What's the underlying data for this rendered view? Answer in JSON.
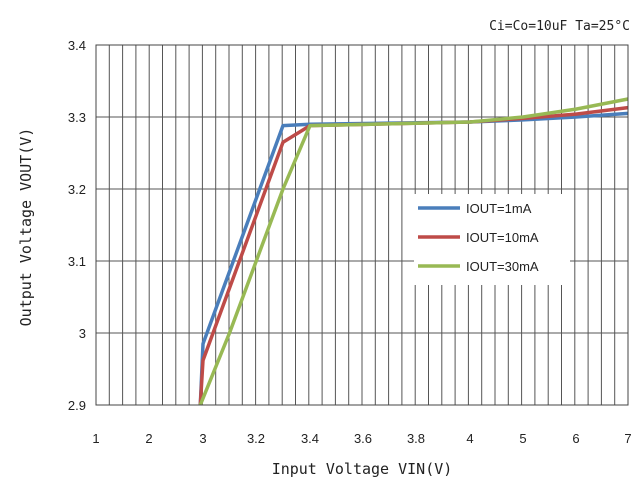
{
  "chart_data": {
    "type": "line",
    "annotation": "Ci=Co=10uF  Ta=25°C",
    "xlabel": "Input Voltage VIN(V)",
    "ylabel": "Output Voltage VOUT(V)",
    "x_tick_labels": [
      "1",
      "2",
      "3",
      "3.2",
      "3.4",
      "3.6",
      "3.8",
      "4",
      "5",
      "6",
      "7"
    ],
    "y_tick_labels": [
      "2.9",
      "3",
      "3.1",
      "3.2",
      "3.3",
      "3.4"
    ],
    "ylim": [
      2.9,
      3.4
    ],
    "grid": true,
    "legend_position": "right-middle",
    "series": [
      {
        "name": "IOUT=1mA",
        "color": "#4a7ebb",
        "points": [
          [
            2.95,
            2.9
          ],
          [
            3.0,
            2.985
          ],
          [
            3.3,
            3.288
          ],
          [
            3.4,
            3.29
          ],
          [
            4.0,
            3.293
          ],
          [
            5.0,
            3.296
          ],
          [
            6.0,
            3.3
          ],
          [
            7.0,
            3.305
          ]
        ]
      },
      {
        "name": "IOUT=10mA",
        "color": "#be4b48",
        "points": [
          [
            2.95,
            2.9
          ],
          [
            3.0,
            2.962
          ],
          [
            3.3,
            3.265
          ],
          [
            3.4,
            3.288
          ],
          [
            4.0,
            3.293
          ],
          [
            5.0,
            3.298
          ],
          [
            6.0,
            3.304
          ],
          [
            7.0,
            3.313
          ]
        ]
      },
      {
        "name": "IOUT=30mA",
        "color": "#98b954",
        "points": [
          [
            2.95,
            2.9
          ],
          [
            3.1,
            3.0
          ],
          [
            3.3,
            3.2
          ],
          [
            3.4,
            3.288
          ],
          [
            4.0,
            3.293
          ],
          [
            5.0,
            3.3
          ],
          [
            6.0,
            3.311
          ],
          [
            7.0,
            3.325
          ]
        ]
      }
    ]
  }
}
